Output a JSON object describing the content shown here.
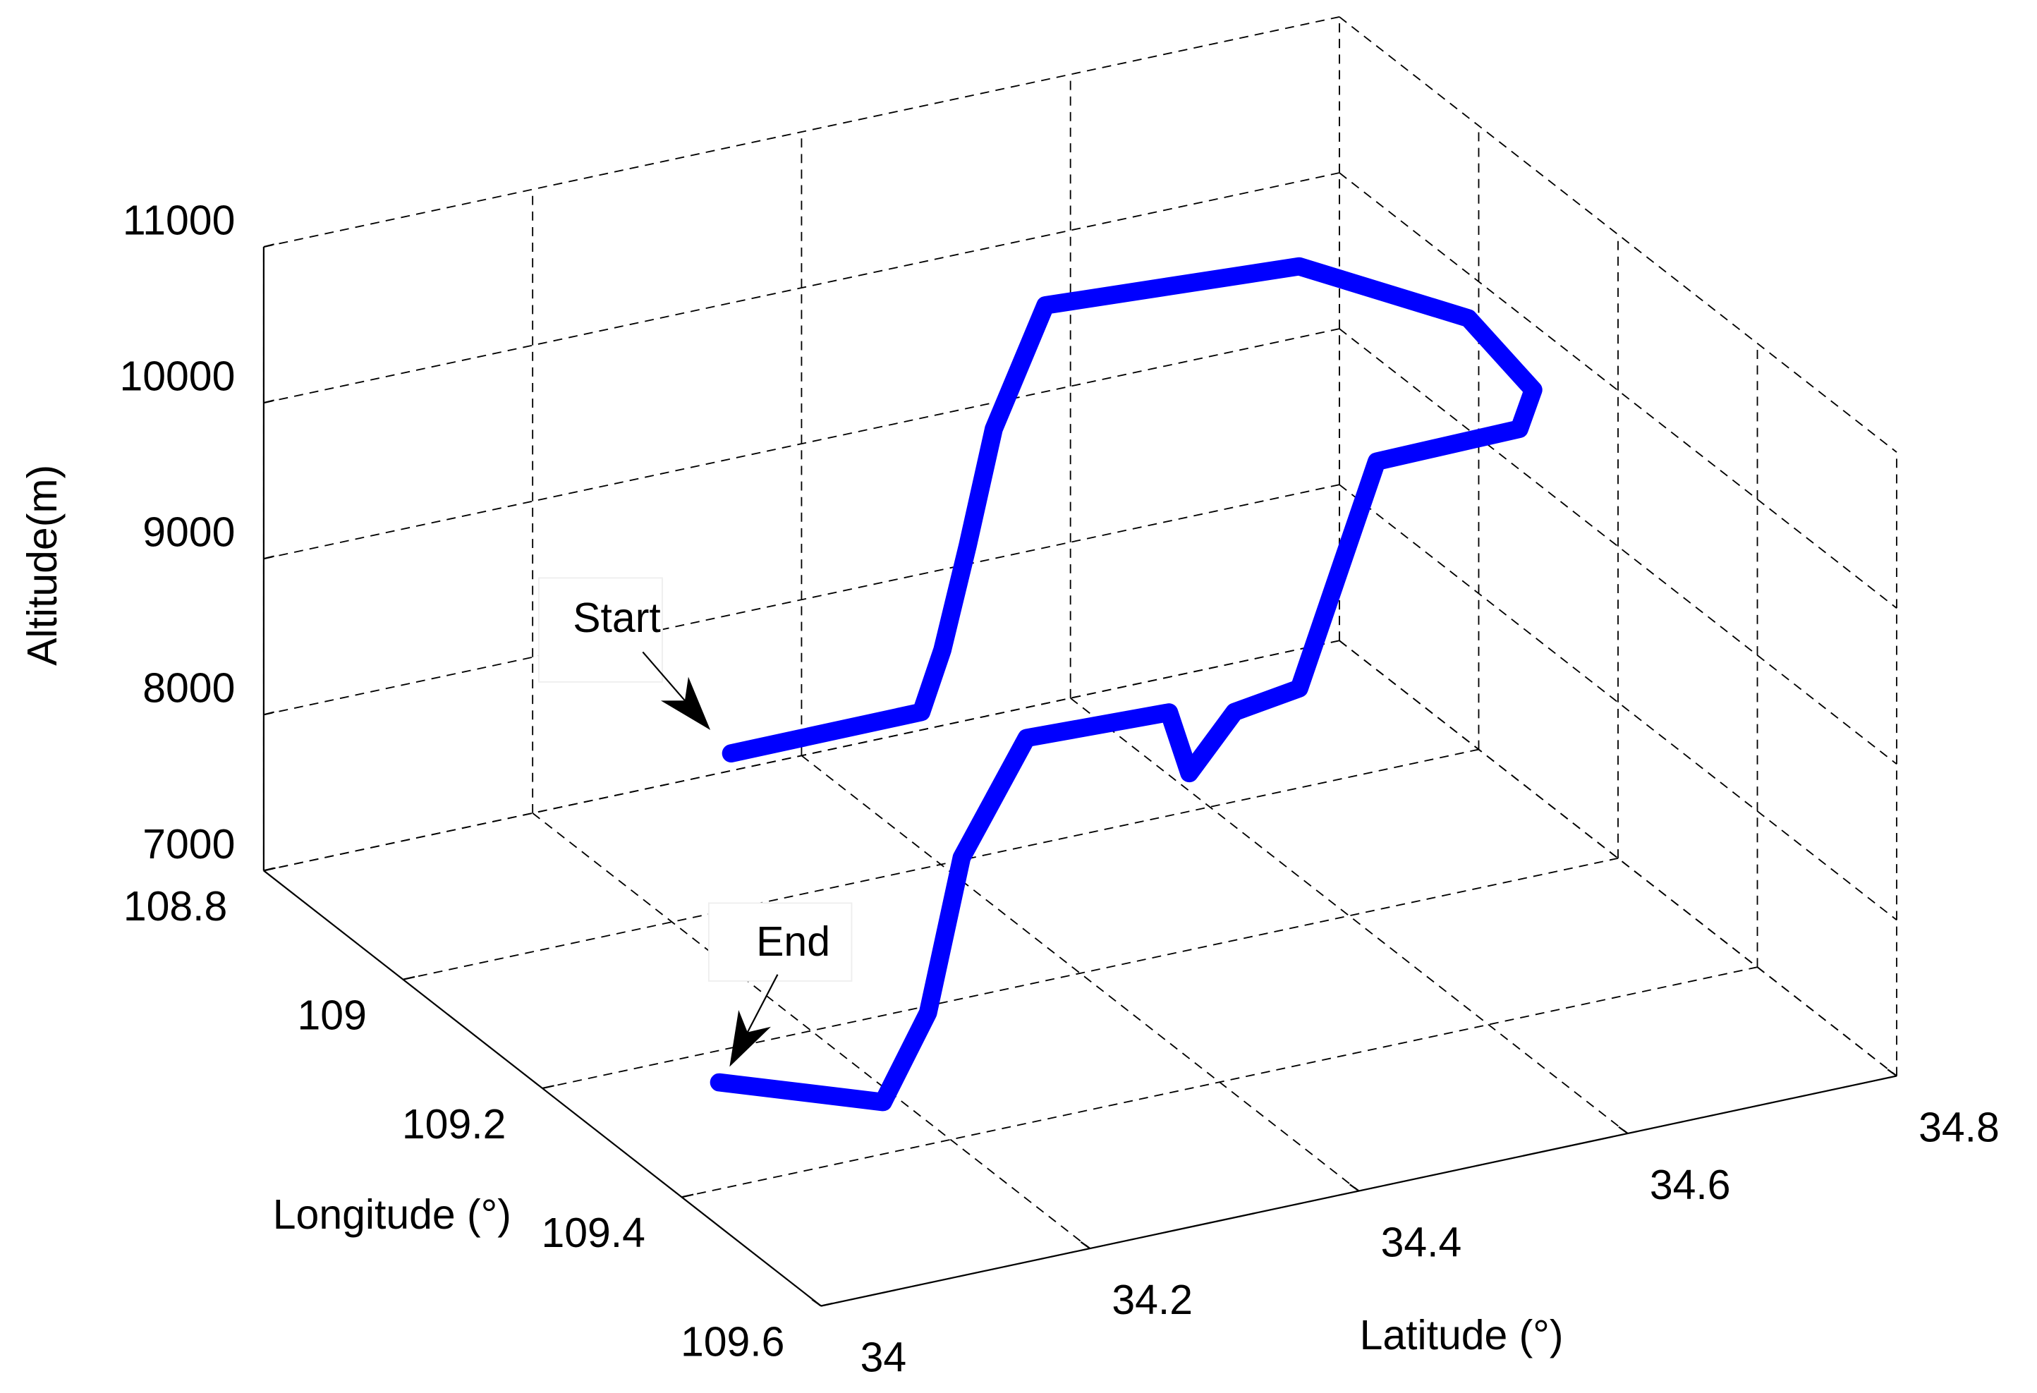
{
  "chart_data": {
    "type": "line3d",
    "xlabel": "Longitude (°)",
    "ylabel": "Latitude (°)",
    "zlabel": "Altitude(m)",
    "xlim": [
      108.8,
      109.6
    ],
    "ylim": [
      34,
      34.8
    ],
    "zlim": [
      7000,
      11000
    ],
    "xticks": [
      108.8,
      109,
      109.2,
      109.4,
      109.6
    ],
    "yticks": [
      34,
      34.2,
      34.4,
      34.6,
      34.8
    ],
    "zticks": [
      7000,
      8000,
      9000,
      10000,
      11000
    ],
    "grid": true,
    "series": [
      {
        "color": "#0000ff",
        "x": [
          109.0,
          108.999,
          109.006,
          108.998,
          109.018,
          109.013,
          109.08,
          109.207,
          109.308,
          109.315,
          109.228,
          109.194,
          109.163,
          109.125,
          109.121,
          109.069,
          109.109,
          109.3,
          109.415,
          109.336
        ],
        "y": [
          34.244,
          34.386,
          34.398,
          34.421,
          34.43,
          34.471,
          34.625,
          34.685,
          34.681,
          34.667,
          34.606,
          34.566,
          34.534,
          34.52,
          34.507,
          34.428,
          34.359,
          34.235,
          34.142,
          34.061
        ],
        "z": [
          8000,
          8000,
          8400,
          9000,
          9800,
          10500,
          10700,
          10700,
          10600,
          10400,
          10000,
          8500,
          8300,
          7800,
          8200,
          8000,
          7500,
          7400,
          7400,
          7400
        ]
      }
    ],
    "annotations": [
      {
        "text": "Start"
      },
      {
        "text": "End"
      }
    ]
  }
}
